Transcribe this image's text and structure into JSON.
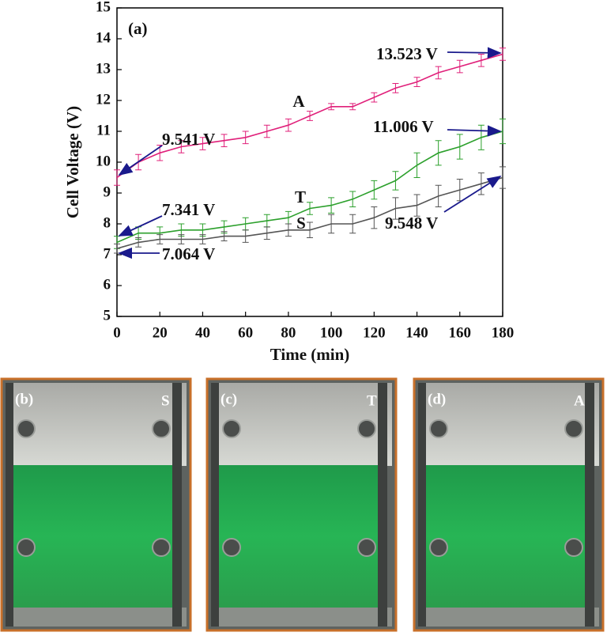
{
  "chart_data": {
    "type": "line",
    "x_label": "Time (min)",
    "y_label": "Cell Voltage (V)",
    "x": [
      0,
      10,
      20,
      30,
      40,
      50,
      60,
      70,
      80,
      90,
      100,
      110,
      120,
      130,
      140,
      150,
      160,
      170,
      180
    ],
    "xlim": [
      0,
      180
    ],
    "ylim": [
      5,
      15
    ],
    "xticks": [
      0,
      20,
      40,
      60,
      80,
      100,
      120,
      140,
      160,
      180
    ],
    "yticks": [
      5,
      6,
      7,
      8,
      9,
      10,
      11,
      12,
      13,
      14,
      15
    ],
    "series": [
      {
        "name": "A",
        "color": "#e0207a",
        "values": [
          9.5,
          10.0,
          10.3,
          10.5,
          10.6,
          10.7,
          10.8,
          11.0,
          11.2,
          11.5,
          11.8,
          11.8,
          12.1,
          12.4,
          12.6,
          12.9,
          13.1,
          13.3,
          13.5
        ],
        "errors": [
          0.25,
          0.25,
          0.25,
          0.2,
          0.2,
          0.2,
          0.2,
          0.2,
          0.2,
          0.15,
          0.1,
          0.1,
          0.15,
          0.15,
          0.15,
          0.2,
          0.2,
          0.2,
          0.2
        ]
      },
      {
        "name": "T",
        "color": "#2ca02c",
        "values": [
          7.4,
          7.7,
          7.7,
          7.8,
          7.8,
          7.9,
          8.0,
          8.1,
          8.2,
          8.5,
          8.6,
          8.8,
          9.1,
          9.4,
          9.9,
          10.3,
          10.5,
          10.8,
          11.0
        ],
        "errors": [
          0.2,
          0.2,
          0.2,
          0.2,
          0.2,
          0.2,
          0.2,
          0.2,
          0.2,
          0.2,
          0.25,
          0.25,
          0.3,
          0.3,
          0.4,
          0.4,
          0.4,
          0.4,
          0.4
        ]
      },
      {
        "name": "S",
        "color": "#555555",
        "values": [
          7.2,
          7.4,
          7.5,
          7.5,
          7.5,
          7.6,
          7.6,
          7.7,
          7.8,
          7.8,
          8.0,
          8.0,
          8.2,
          8.5,
          8.6,
          8.9,
          9.1,
          9.3,
          9.5
        ],
        "errors": [
          0.15,
          0.15,
          0.15,
          0.15,
          0.15,
          0.15,
          0.2,
          0.2,
          0.2,
          0.25,
          0.3,
          0.3,
          0.35,
          0.35,
          0.35,
          0.35,
          0.35,
          0.35,
          0.35
        ]
      }
    ],
    "annotations": [
      "(a)",
      "A",
      "T",
      "S",
      "9.541 V",
      "13.523 V",
      "11.006 V",
      "7.341 V",
      "7.064 V",
      "9.548 V"
    ]
  },
  "panels": [
    {
      "label": "(b)",
      "tag": "S"
    },
    {
      "label": "(c)",
      "tag": "T"
    },
    {
      "label": "(d)",
      "tag": "A"
    }
  ]
}
